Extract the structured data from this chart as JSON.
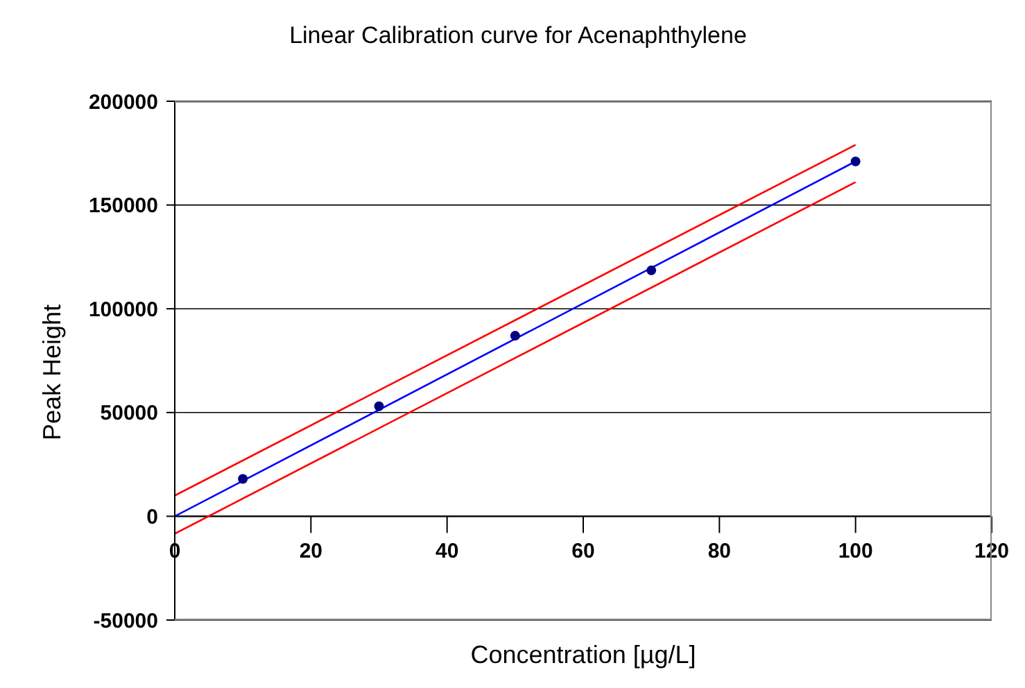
{
  "chart_data": {
    "type": "scatter",
    "title": "Linear Calibration curve for Acenaphthylene",
    "xlabel": "Concentration [µg/L]",
    "ylabel": "Peak Height",
    "xlim": [
      0,
      120
    ],
    "xticks": [
      0,
      20,
      40,
      60,
      80,
      100,
      120
    ],
    "ylim": [
      -50000,
      200000
    ],
    "yticks": [
      -50000,
      0,
      50000,
      100000,
      150000,
      200000
    ],
    "grid": "y",
    "series": [
      {
        "type": "line",
        "color": "#ff0000",
        "x": [
          0,
          100
        ],
        "values": [
          10000,
          179000
        ],
        "marker": "none"
      },
      {
        "type": "line",
        "color": "#ff0000",
        "x": [
          0,
          100
        ],
        "values": [
          -8400,
          161000
        ],
        "marker": "none"
      },
      {
        "type": "line",
        "color": "#0000ff",
        "x": [
          0,
          100
        ],
        "values": [
          0,
          171000
        ],
        "marker": "none"
      },
      {
        "color": "#000080",
        "x": [
          10,
          30,
          50,
          70,
          100
        ],
        "values": [
          18000,
          53000,
          87000,
          118500,
          171000
        ],
        "marker": "circle"
      }
    ]
  }
}
